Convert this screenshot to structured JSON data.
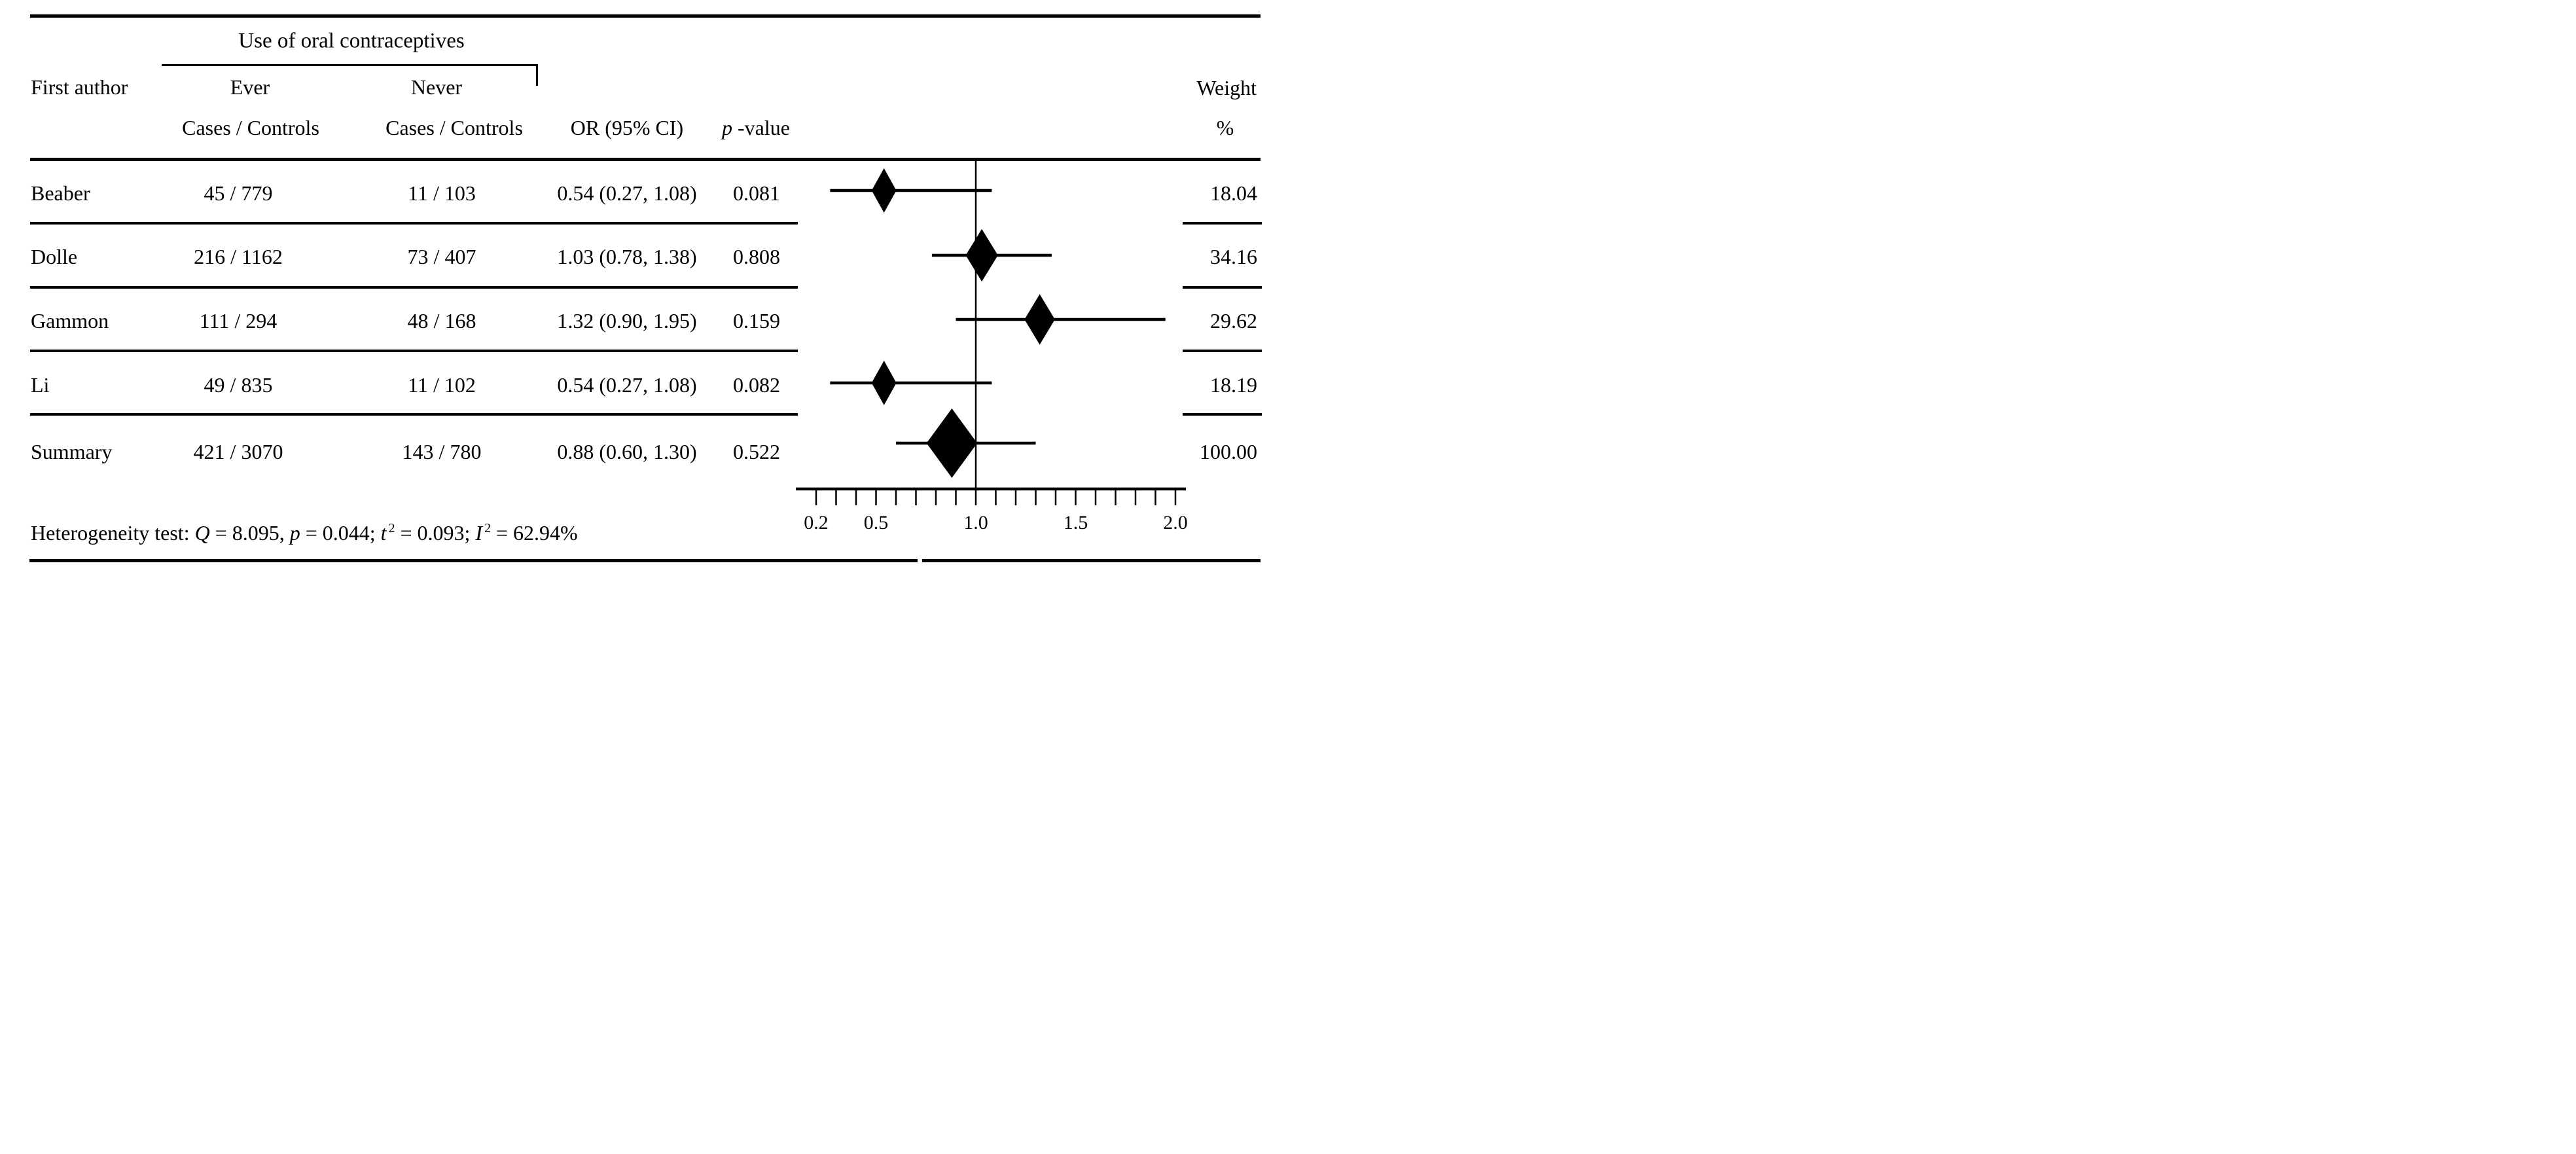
{
  "figure": {
    "header": {
      "group_title": "Use of oral contraceptives",
      "first_author": "First author",
      "ever": "Ever",
      "never": "Never",
      "cases_controls_ever": "Cases / Controls",
      "cases_controls_never": "Cases / Controls",
      "or_ci": "OR (95% CI)",
      "p_value_segments": [
        {
          "t": "p",
          "i": true
        },
        {
          "t": " -value"
        }
      ],
      "weight": "Weight",
      "percent": "%"
    },
    "rows": [
      {
        "author": "Beaber",
        "ever": "45 / 779",
        "never": "11 / 103",
        "or_ci": "0.54 (0.27, 1.08)",
        "p": "0.081",
        "weight": "18.04"
      },
      {
        "author": "Dolle",
        "ever": "216 / 1162",
        "never": "73 / 407",
        "or_ci": "1.03 (0.78, 1.38)",
        "p": "0.808",
        "weight": "34.16"
      },
      {
        "author": "Gammon",
        "ever": "111 / 294",
        "never": "48 / 168",
        "or_ci": "1.32 (0.90, 1.95)",
        "p": "0.159",
        "weight": "29.62"
      },
      {
        "author": "Li",
        "ever": "49 / 835",
        "never": "11 / 102",
        "or_ci": "0.54 (0.27, 1.08)",
        "p": "0.082",
        "weight": "18.19"
      },
      {
        "author": "Summary",
        "ever": "421 / 3070",
        "never": "143 / 780",
        "or_ci": "0.88 (0.60, 1.30)",
        "p": "0.522",
        "weight": "100.00"
      }
    ],
    "footer_segments": [
      {
        "t": "Heterogeneity test: "
      },
      {
        "t": "Q",
        "i": true
      },
      {
        "t": " = 8.095, "
      },
      {
        "t": "p",
        "i": true
      },
      {
        "t": " = 0.044; "
      },
      {
        "t": "t",
        "i": true
      },
      {
        "t": "2",
        "sup": true
      },
      {
        "t": " = 0.093; "
      },
      {
        "t": "I",
        "i": true
      },
      {
        "t": "2",
        "sup": true
      },
      {
        "t": " = 62.94%"
      }
    ]
  },
  "chart_data": {
    "type": "forest",
    "title": "",
    "xlabel": "",
    "x_axis": {
      "scale": "linear",
      "min": 0.1,
      "max": 2.05,
      "minor_tick_step": 0.1,
      "minor_tick_start": 0.2,
      "minor_tick_end": 2.0,
      "labeled_ticks": [
        "0.2",
        "0.5",
        "1.0",
        "1.5",
        "2.0"
      ],
      "labeled_tick_values": [
        0.2,
        0.5,
        1.0,
        1.5,
        2.0
      ],
      "reference_line": 1.0
    },
    "series": [
      {
        "label": "Beaber",
        "or": 0.54,
        "ci_low": 0.27,
        "ci_high": 1.08,
        "p_value": 0.081,
        "weight_pct": 18.04,
        "is_summary": false
      },
      {
        "label": "Dolle",
        "or": 1.03,
        "ci_low": 0.78,
        "ci_high": 1.38,
        "p_value": 0.808,
        "weight_pct": 34.16,
        "is_summary": false
      },
      {
        "label": "Gammon",
        "or": 1.32,
        "ci_low": 0.9,
        "ci_high": 1.95,
        "p_value": 0.159,
        "weight_pct": 29.62,
        "is_summary": false
      },
      {
        "label": "Li",
        "or": 0.54,
        "ci_low": 0.27,
        "ci_high": 1.08,
        "p_value": 0.082,
        "weight_pct": 18.19,
        "is_summary": false
      },
      {
        "label": "Summary",
        "or": 0.88,
        "ci_low": 0.6,
        "ci_high": 1.3,
        "p_value": 0.522,
        "weight_pct": 100.0,
        "is_summary": true
      }
    ],
    "heterogeneity": {
      "Q": 8.095,
      "p": 0.044,
      "tau2": 0.093,
      "I2_pct": 62.94
    },
    "marker": "diamond",
    "ink_color": "#000000",
    "background_color": "#ffffff"
  },
  "colors": {
    "ink": "#000000",
    "background": "#ffffff"
  }
}
